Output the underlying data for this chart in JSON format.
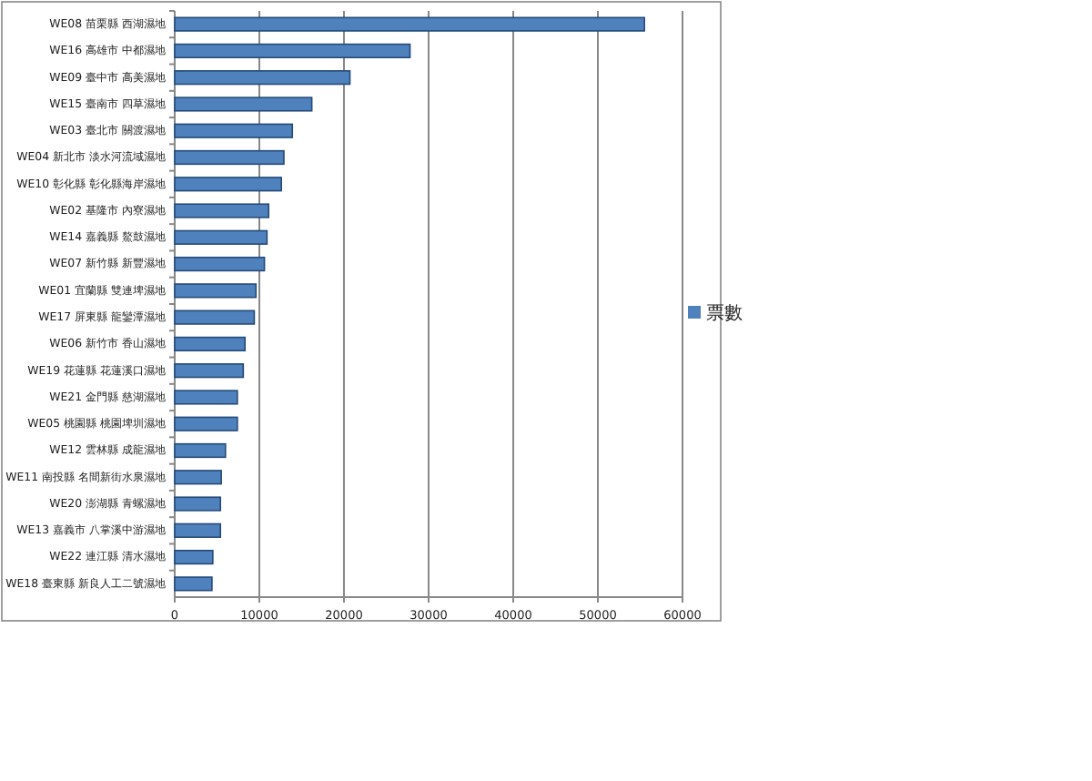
{
  "chart_data": {
    "type": "bar",
    "orientation": "horizontal",
    "categories": [
      "WE08 苗栗縣 西湖濕地",
      "WE16 高雄市 中都濕地",
      "WE09 臺中市 高美濕地",
      "WE15 臺南市 四草濕地",
      "WE03 臺北市 關渡濕地",
      "WE04 新北市 淡水河流域濕地",
      "WE10 彰化縣 彰化縣海岸濕地",
      "WE02 基隆市 內寮濕地",
      "WE14 嘉義縣 鰲鼓濕地",
      "WE07 新竹縣 新豐濕地",
      "WE01 宜蘭縣 雙連埤濕地",
      "WE17 屏東縣 龍鑾潭濕地",
      "WE06 新竹市 香山濕地",
      "WE19 花蓮縣 花蓮溪口濕地",
      "WE21 金門縣 慈湖濕地",
      "WE05 桃園縣 桃園埤圳濕地",
      "WE12 雲林縣 成龍濕地",
      "WE11 南投縣 名間新街水泉濕地",
      "WE20 澎湖縣 青螺濕地",
      "WE13 嘉義市 八掌溪中游濕地",
      "WE22 連江縣 清水濕地",
      "WE18 臺東縣 新良人工二號濕地"
    ],
    "series": [
      {
        "name": "票數",
        "color": "#4f81bd",
        "values": [
          55500,
          27800,
          20700,
          16200,
          13900,
          12900,
          12600,
          11100,
          10900,
          10600,
          9600,
          9400,
          8300,
          8100,
          7400,
          7400,
          6000,
          5500,
          5400,
          5400,
          4500,
          4400
        ]
      }
    ],
    "xlim": [
      0,
      60000
    ],
    "xticks": [
      0,
      10000,
      20000,
      30000,
      40000,
      50000,
      60000
    ],
    "grid": "x",
    "legend": "right"
  }
}
